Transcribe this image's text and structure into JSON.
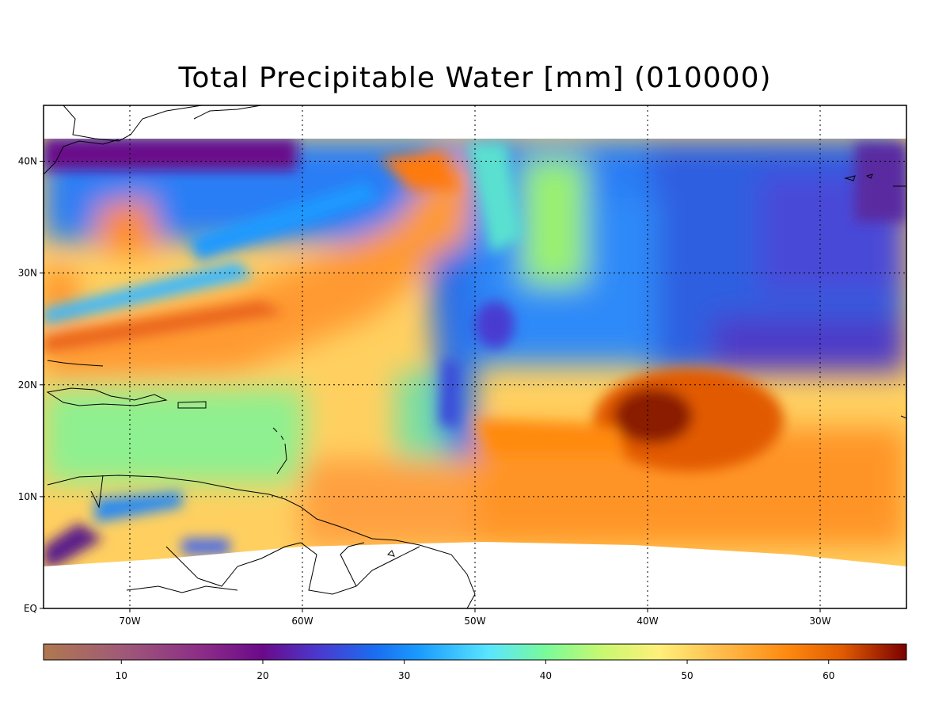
{
  "title": "Total Precipitable Water [mm]  (010000)",
  "map": {
    "lon_range": [
      -75,
      -25
    ],
    "lat_range": [
      0,
      45
    ],
    "data_lat_top": 42,
    "lat_ticks": [
      {
        "value": 40,
        "label": "40N"
      },
      {
        "value": 30,
        "label": "30N"
      },
      {
        "value": 20,
        "label": "20N"
      },
      {
        "value": 10,
        "label": "10N"
      },
      {
        "value": 0,
        "label": "EQ"
      }
    ],
    "lon_ticks": [
      {
        "value": -70,
        "label": "70W"
      },
      {
        "value": -60,
        "label": "60W"
      },
      {
        "value": -50,
        "label": "50W"
      },
      {
        "value": -40,
        "label": "40W"
      },
      {
        "value": -30,
        "label": "30W"
      }
    ],
    "grid": true
  },
  "colorbar": {
    "range": [
      4.5,
      65.5
    ],
    "ticks": [
      {
        "value": 10,
        "label": "10"
      },
      {
        "value": 20,
        "label": "20"
      },
      {
        "value": 30,
        "label": "30"
      },
      {
        "value": 40,
        "label": "40"
      },
      {
        "value": 50,
        "label": "50"
      },
      {
        "value": 60,
        "label": "60"
      }
    ],
    "stops": [
      {
        "v": 4.5,
        "c": "#b0784f"
      },
      {
        "v": 10,
        "c": "#a05a78"
      },
      {
        "v": 16,
        "c": "#8a2a88"
      },
      {
        "v": 20,
        "c": "#6a0a8a"
      },
      {
        "v": 24,
        "c": "#4a3ad0"
      },
      {
        "v": 28,
        "c": "#1a6ef0"
      },
      {
        "v": 31,
        "c": "#1a9aff"
      },
      {
        "v": 36,
        "c": "#5ae6ff"
      },
      {
        "v": 40,
        "c": "#7afa9a"
      },
      {
        "v": 44,
        "c": "#c8f870"
      },
      {
        "v": 48,
        "c": "#fff07a"
      },
      {
        "v": 52,
        "c": "#ffc050"
      },
      {
        "v": 57,
        "c": "#ff8a10"
      },
      {
        "v": 61,
        "c": "#e05a00"
      },
      {
        "v": 65.5,
        "c": "#7a0000"
      }
    ]
  }
}
